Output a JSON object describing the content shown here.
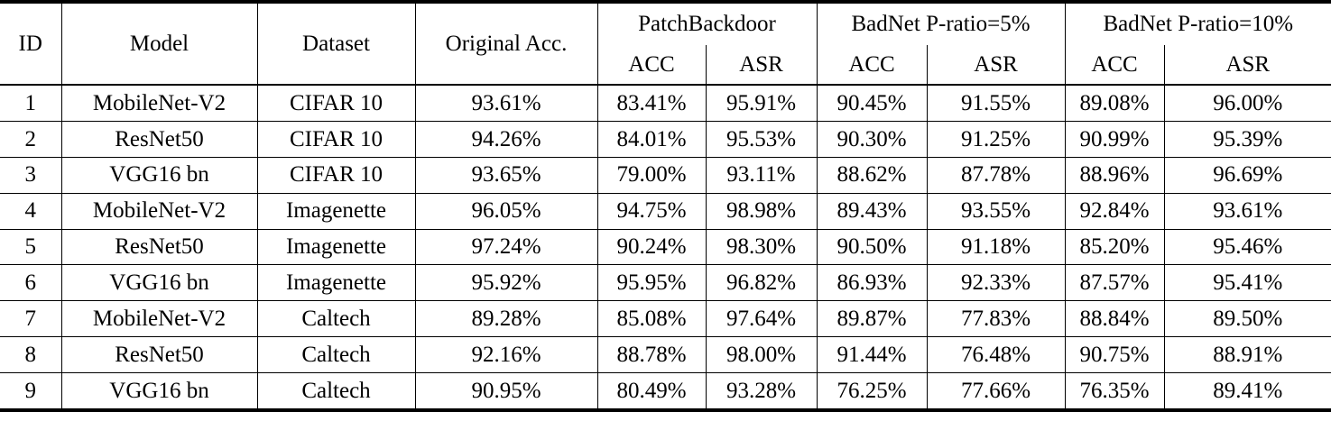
{
  "colors": {
    "background": "#ffffff",
    "text": "#000000",
    "rule": "#000000"
  },
  "table": {
    "header": {
      "id": "ID",
      "model": "Model",
      "dataset": "Dataset",
      "original_acc": "Original Acc.",
      "groups": [
        {
          "label": "PatchBackdoor",
          "acc": "ACC",
          "asr": "ASR"
        },
        {
          "label": "BadNet P-ratio=5%",
          "acc": "ACC",
          "asr": "ASR"
        },
        {
          "label": "BadNet P-ratio=10%",
          "acc": "ACC",
          "asr": "ASR"
        }
      ]
    },
    "column_names": [
      "cell-id",
      "cell-model",
      "cell-dataset",
      "cell-original-acc",
      "cell-patchbackdoor-acc",
      "cell-patchbackdoor-asr",
      "cell-badnet-p5-acc",
      "cell-badnet-p5-asr",
      "cell-badnet-p10-acc",
      "cell-badnet-p10-asr"
    ],
    "rows": [
      [
        "1",
        "MobileNet-V2",
        "CIFAR 10",
        "93.61%",
        "83.41%",
        "95.91%",
        "90.45%",
        "91.55%",
        "89.08%",
        "96.00%"
      ],
      [
        "2",
        "ResNet50",
        "CIFAR 10",
        "94.26%",
        "84.01%",
        "95.53%",
        "90.30%",
        "91.25%",
        "90.99%",
        "95.39%"
      ],
      [
        "3",
        "VGG16 bn",
        "CIFAR 10",
        "93.65%",
        "79.00%",
        "93.11%",
        "88.62%",
        "87.78%",
        "88.96%",
        "96.69%"
      ],
      [
        "4",
        "MobileNet-V2",
        "Imagenette",
        "96.05%",
        "94.75%",
        "98.98%",
        "89.43%",
        "93.55%",
        "92.84%",
        "93.61%"
      ],
      [
        "5",
        "ResNet50",
        "Imagenette",
        "97.24%",
        "90.24%",
        "98.30%",
        "90.50%",
        "91.18%",
        "85.20%",
        "95.46%"
      ],
      [
        "6",
        "VGG16 bn",
        "Imagenette",
        "95.92%",
        "95.95%",
        "96.82%",
        "86.93%",
        "92.33%",
        "87.57%",
        "95.41%"
      ],
      [
        "7",
        "MobileNet-V2",
        "Caltech",
        "89.28%",
        "85.08%",
        "97.64%",
        "89.87%",
        "77.83%",
        "88.84%",
        "89.50%"
      ],
      [
        "8",
        "ResNet50",
        "Caltech",
        "92.16%",
        "88.78%",
        "98.00%",
        "91.44%",
        "76.48%",
        "90.75%",
        "88.91%"
      ],
      [
        "9",
        "VGG16 bn",
        "Caltech",
        "90.95%",
        "80.49%",
        "93.28%",
        "76.25%",
        "77.66%",
        "76.35%",
        "89.41%"
      ]
    ]
  }
}
